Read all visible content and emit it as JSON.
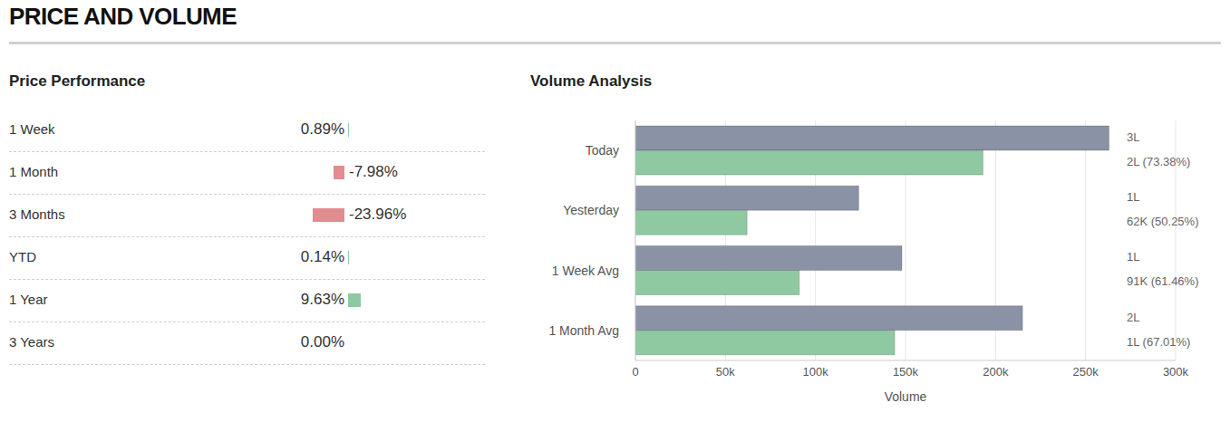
{
  "title": "PRICE AND VOLUME",
  "price_performance": {
    "title": "Price Performance",
    "rows": [
      {
        "period": "1 Week",
        "value": 0.89,
        "label": "0.89%"
      },
      {
        "period": "1 Month",
        "value": -7.98,
        "label": "-7.98%"
      },
      {
        "period": "3 Months",
        "value": -23.96,
        "label": "-23.96%"
      },
      {
        "period": "YTD",
        "value": 0.14,
        "label": "0.14%"
      },
      {
        "period": "1 Year",
        "value": 9.63,
        "label": "9.63%"
      },
      {
        "period": "3 Years",
        "value": 0.0,
        "label": "0.00%"
      }
    ]
  },
  "chart_data": {
    "type": "bar",
    "orientation": "horizontal",
    "title": "Volume Analysis",
    "categories": [
      "Today",
      "Yesterday",
      "1 Week Avg",
      "1 Month Avg"
    ],
    "series": [
      {
        "color": "#8a93a5",
        "values": [
          263000,
          124000,
          148000,
          215000
        ],
        "value_labels": [
          "3L",
          "1L",
          "1L",
          "2L"
        ]
      },
      {
        "color": "#8fc9a2",
        "values": [
          193000,
          62000,
          91000,
          144000
        ],
        "value_labels": [
          "2L (73.38%)",
          "62K (50.25%)",
          "91K (61.46%)",
          "1L (67.01%)"
        ]
      }
    ],
    "xlim": [
      0,
      300000
    ],
    "xticks": [
      0,
      {
        "value": 50000,
        "label": "50k"
      },
      {
        "value": 100000,
        "label": "100k"
      },
      {
        "value": 150000,
        "label": "150k"
      },
      {
        "value": 200000,
        "label": "200k"
      },
      {
        "value": 250000,
        "label": "250k"
      },
      {
        "value": 300000,
        "label": "300k"
      }
    ],
    "x_label": "Volume",
    "grid": true,
    "data_labels": true
  }
}
